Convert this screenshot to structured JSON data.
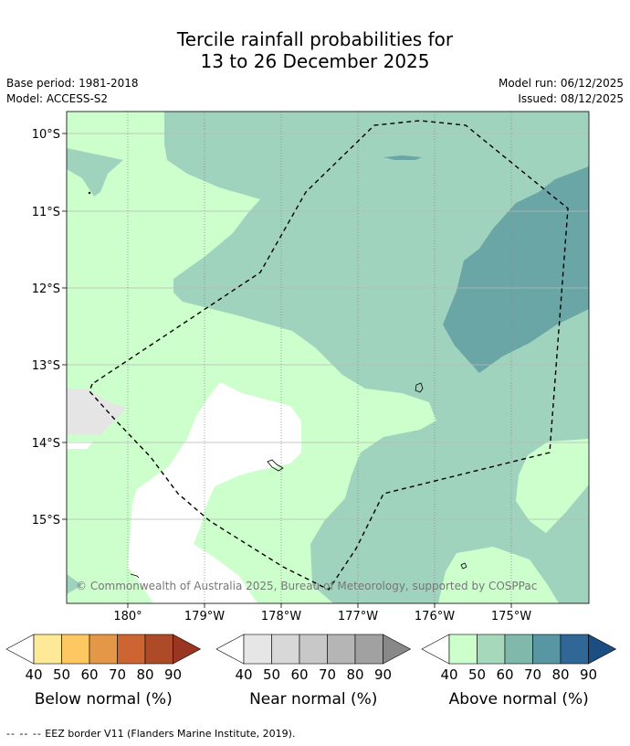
{
  "title": {
    "line1": "Tercile rainfall probabilities for",
    "line2": "13 to 26 December 2025"
  },
  "meta": {
    "base_period": "Base period: 1981-2018",
    "model": "Model: ACCESS-S2",
    "model_run": "Model run: 06/12/2025",
    "issued": "Issued: 08/12/2025"
  },
  "map": {
    "lat_labels": [
      "10°S",
      "11°S",
      "12°S",
      "13°S",
      "14°S",
      "15°S"
    ],
    "lon_labels": [
      "180°",
      "179°W",
      "178°W",
      "177°W",
      "176°W",
      "175°W"
    ],
    "copyright": "© Commonwealth of Australia 2025, Bureau of Meteorology, supported by COSPPac"
  },
  "colors": {
    "above_40": "#ccffcc",
    "above_50": "#a0d3bd",
    "above_60": "#6ba6a6",
    "near_40": "#e5e5e5",
    "border": "#000000"
  },
  "colorbars": [
    {
      "label": "Below normal (%)",
      "ticks": [
        "40",
        "50",
        "60",
        "70",
        "80",
        "90"
      ],
      "colors": [
        "#ffffff",
        "#fee999",
        "#fdc762",
        "#e39747",
        "#cd6532",
        "#ad4a28",
        "#9a3522"
      ]
    },
    {
      "label": "Near normal (%)",
      "ticks": [
        "40",
        "50",
        "60",
        "70",
        "80",
        "90"
      ],
      "colors": [
        "#ffffff",
        "#e6e6e6",
        "#d8d8d8",
        "#c8c8c8",
        "#b5b5b5",
        "#a1a1a1",
        "#888888"
      ]
    },
    {
      "label": "Above normal (%)",
      "ticks": [
        "40",
        "50",
        "60",
        "70",
        "80",
        "90"
      ],
      "colors": [
        "#ffffff",
        "#ccffcc",
        "#a6d9bb",
        "#80b8ac",
        "#5996a3",
        "#306797",
        "#1c4d80"
      ]
    }
  ],
  "footer": {
    "dash": "-- -- --",
    "text": " EEZ border V11 (Flanders Marine Institute, 2019)."
  }
}
